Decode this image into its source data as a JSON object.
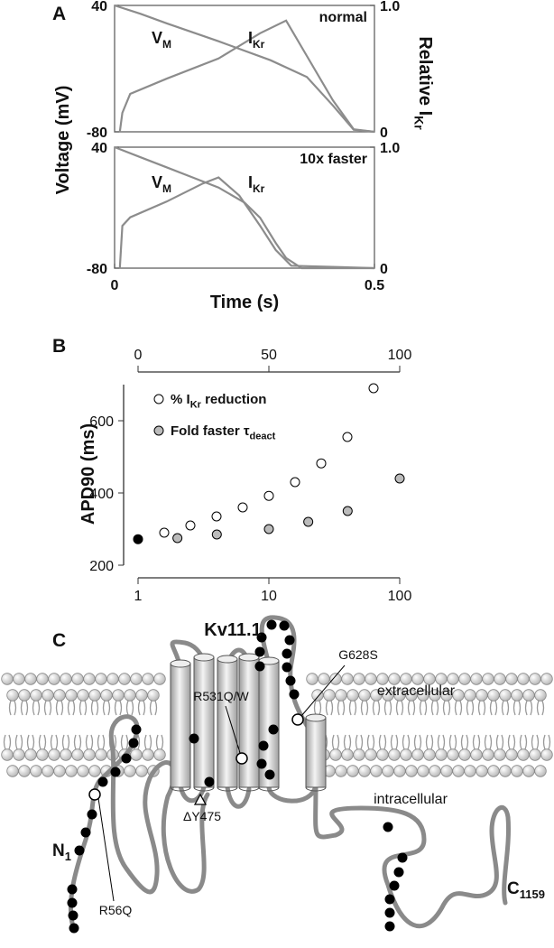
{
  "panel_labels": [
    "A",
    "B",
    "C"
  ],
  "chart_data": [
    {
      "type": "line",
      "ylabel": "Voltage (mV)",
      "y2label": [
        "Relative I",
        "Kr"
      ],
      "annotation": "normal",
      "xlim": [
        0,
        0.5
      ],
      "ylim": [
        -80,
        40
      ],
      "yticks": [
        -80,
        40
      ],
      "y2lim": [
        0,
        1
      ],
      "y2ticks": [
        0,
        {
          "value": 1,
          "label": "1.0"
        }
      ],
      "series": [
        {
          "label": [
            "V",
            "M"
          ],
          "color": "#8c8c8c",
          "x": [
            0,
            0.05,
            0.1,
            0.2,
            0.3,
            0.37,
            0.42,
            0.46,
            0.5
          ],
          "values": [
            40,
            32,
            23,
            6,
            -12,
            -28,
            -55,
            -78,
            -80
          ]
        },
        {
          "label": [
            "I",
            "Kr"
          ],
          "axis": "y2",
          "color": "#8c8c8c",
          "x": [
            0.01,
            0.015,
            0.03,
            0.1,
            0.2,
            0.28,
            0.33,
            0.37,
            0.42,
            0.46,
            0.5
          ],
          "values": [
            0,
            0.15,
            0.3,
            0.42,
            0.58,
            0.78,
            0.88,
            0.6,
            0.25,
            0.02,
            0
          ]
        }
      ]
    },
    {
      "type": "line",
      "annotation": "10x faster",
      "xlabel": "Time (s)",
      "xlim": [
        0,
        0.5
      ],
      "xticks": [
        0,
        0.5
      ],
      "ylim": [
        -80,
        40
      ],
      "yticks": [
        -80,
        40
      ],
      "y2lim": [
        0,
        1
      ],
      "y2ticks": [
        0,
        {
          "value": 1,
          "label": "1.0"
        }
      ],
      "series": [
        {
          "label": [
            "V",
            "M"
          ],
          "color": "#8c8c8c",
          "x": [
            0,
            0.05,
            0.1,
            0.15,
            0.2,
            0.25,
            0.28,
            0.31,
            0.33,
            0.36,
            0.5
          ],
          "values": [
            40,
            30,
            20,
            10,
            0,
            -15,
            -30,
            -55,
            -70,
            -80,
            -80
          ]
        },
        {
          "label": [
            "I",
            "Kr"
          ],
          "axis": "y2",
          "color": "#8c8c8c",
          "x": [
            0.01,
            0.015,
            0.03,
            0.1,
            0.17,
            0.2,
            0.24,
            0.28,
            0.31,
            0.34,
            0.5
          ],
          "values": [
            0,
            0.35,
            0.42,
            0.55,
            0.7,
            0.75,
            0.6,
            0.35,
            0.15,
            0.02,
            0
          ]
        }
      ]
    },
    {
      "type": "scatter",
      "ylabel": "APD90 (ms)",
      "xscale": "log",
      "xlim": [
        1,
        100
      ],
      "xticks": [
        1,
        10,
        100
      ],
      "x2lim": [
        0,
        100
      ],
      "x2ticks": [
        0,
        50,
        100
      ],
      "ylim": [
        200,
        700
      ],
      "yticks": [
        200,
        400,
        600
      ],
      "legend": "upper left",
      "series": [
        {
          "name": [
            "% I",
            "Kr",
            " reduction"
          ],
          "axis": "x2",
          "color": "#ffffff",
          "x": [
            10,
            20,
            30,
            40,
            50,
            60,
            70,
            80,
            90
          ],
          "values": [
            290,
            310,
            335,
            360,
            392,
            430,
            482,
            555,
            690
          ]
        },
        {
          "name": [
            "Fold faster τ",
            "deact"
          ],
          "color": "#bbbbbb",
          "x": [
            2,
            4,
            10,
            20,
            40,
            100
          ],
          "values": [
            275,
            285,
            300,
            320,
            350,
            440
          ]
        },
        {
          "color": "#000000",
          "x": [
            1
          ],
          "values": [
            272
          ]
        }
      ]
    }
  ],
  "diagram": {
    "title": "Kv11.1",
    "regions": [
      "extracellular",
      "intracellular"
    ],
    "mutations": [
      "R531Q/W",
      "G628S",
      "ΔY475",
      "R56Q"
    ],
    "n_terminus": [
      "N",
      "1"
    ],
    "c_terminus": [
      "C",
      "1159"
    ]
  }
}
